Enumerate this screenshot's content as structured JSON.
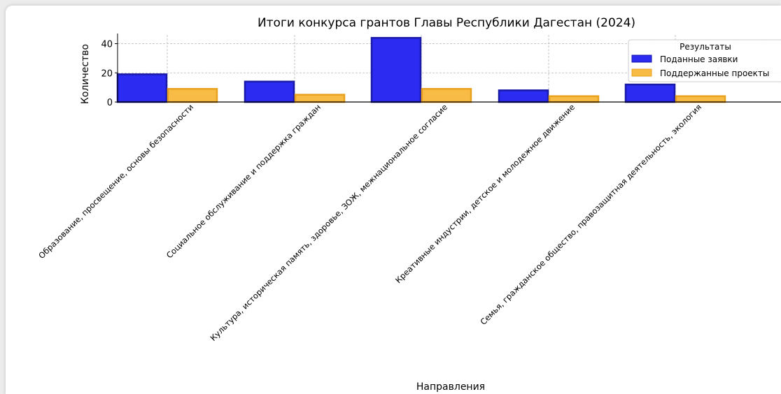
{
  "chart_data": {
    "type": "bar",
    "title": "Итоги конкурса грантов Главы Республики Дагестан (2024)",
    "xlabel": "Направления",
    "ylabel": "Количество",
    "ylim": [
      0,
      46
    ],
    "yticks": [
      0,
      20,
      40
    ],
    "grid": true,
    "legend": {
      "title": "Результаты",
      "placement": "top-right"
    },
    "categories": [
      "Образование, просвещение, основы безопасности",
      "Социальное обслуживание и поддержка граждан",
      "Культура, историческая память, здоровье, ЗОЖ, межнациональное согласие",
      "Креативные индустрии, детское и молодежное движение",
      "Семья, гражданское общество, правозащитная деятельность, экология"
    ],
    "series": [
      {
        "name": "Поданные заявки",
        "values": [
          19,
          14,
          44,
          8,
          12
        ],
        "color": "#2b2bf2",
        "edge": "#1a1aa8"
      },
      {
        "name": "Поддержанные проекты",
        "values": [
          9,
          5,
          9,
          4,
          4
        ],
        "color": "#f8bb45",
        "edge": "#e9a21f"
      }
    ]
  }
}
